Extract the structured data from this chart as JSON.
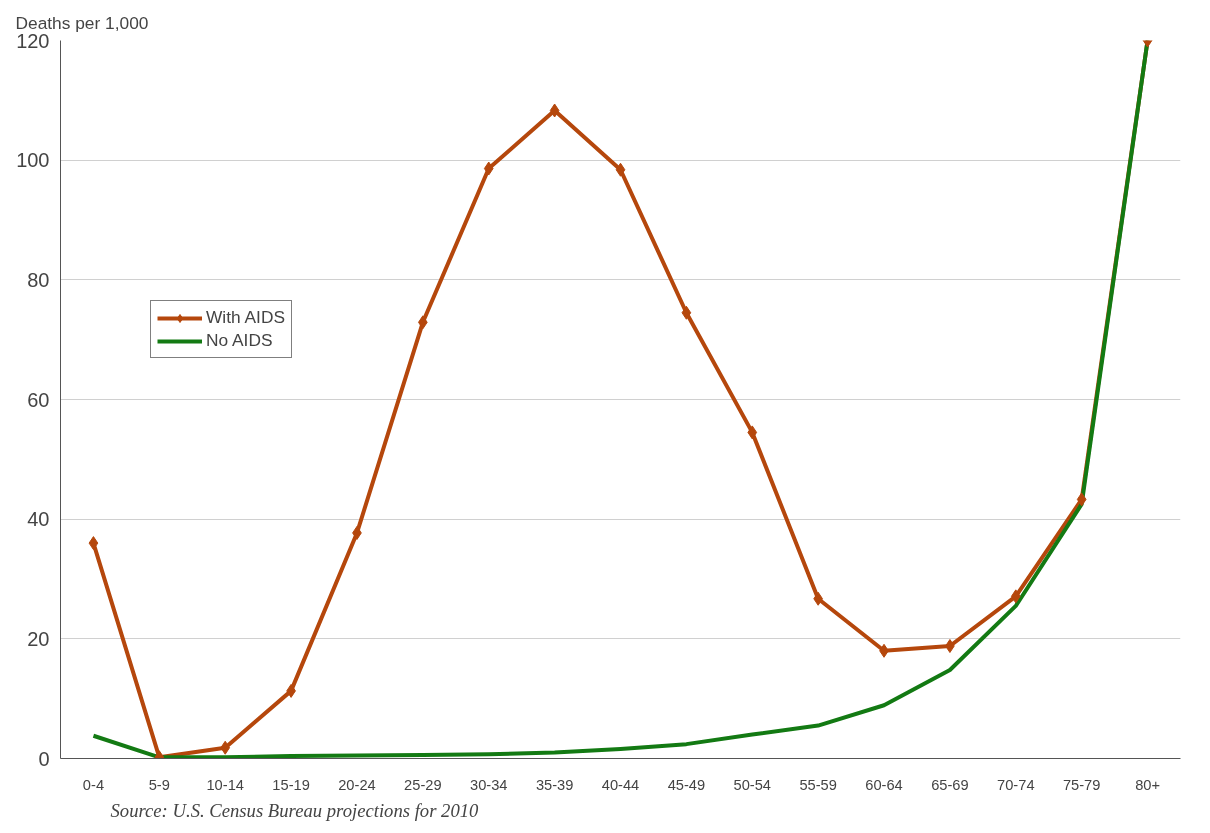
{
  "chart_data": {
    "type": "line",
    "ylabel": "Deaths per 1,000",
    "categories": [
      "0-4",
      "5-9",
      "10-14",
      "15-19",
      "20-24",
      "25-29",
      "30-34",
      "35-39",
      "40-44",
      "45-49",
      "50-54",
      "55-59",
      "60-64",
      "65-69",
      "70-74",
      "75-79",
      "80+"
    ],
    "series": [
      {
        "name": "With AIDS",
        "color": "#b5470c",
        "marker": "diamond",
        "values": [
          36,
          0.2,
          1.8,
          11.3,
          37.7,
          72.9,
          98.6,
          108.3,
          98.4,
          74.5,
          54.5,
          26.7,
          18,
          18.8,
          27.1,
          43.3,
          120
        ]
      },
      {
        "name": "No AIDS",
        "color": "#137a13",
        "marker": "none",
        "values": [
          3.8,
          0.2,
          0.2,
          0.4,
          0.5,
          0.6,
          0.7,
          1.0,
          1.6,
          2.4,
          4.0,
          5.5,
          8.9,
          14.8,
          25.5,
          42.5,
          120
        ]
      }
    ],
    "ylim": [
      0,
      120
    ],
    "yticks": [
      0,
      20,
      40,
      60,
      80,
      100,
      120
    ],
    "grid": "y",
    "legend": "top left",
    "line_style": "solid",
    "annotations": [
      "Source: U.S. Census Bureau projections for 2010"
    ]
  }
}
